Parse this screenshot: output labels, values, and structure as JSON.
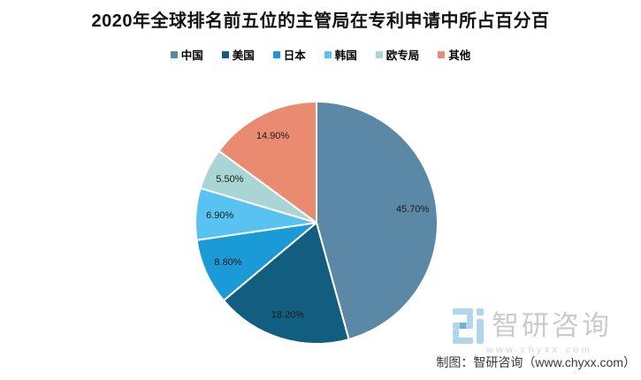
{
  "title": "2020年全球排名前五位的主管局在专利申请中所占百分百",
  "chart_data": {
    "type": "pie",
    "title": "2020年全球排名前五位的主管局在专利申请中所占百分百",
    "legend_position": "top",
    "start_angle_deg": 0,
    "direction": "clockwise",
    "slices": [
      {
        "label": "中国",
        "value": 45.7,
        "display": "45.70%",
        "color": "#5b89a5"
      },
      {
        "label": "美国",
        "value": 18.2,
        "display": "18.20%",
        "color": "#115e80"
      },
      {
        "label": "日本",
        "value": 8.8,
        "display": "8.80%",
        "color": "#1a9ad6"
      },
      {
        "label": "韩国",
        "value": 6.9,
        "display": "6.90%",
        "color": "#58c3f0"
      },
      {
        "label": "欧专局",
        "value": 5.5,
        "display": "5.50%",
        "color": "#a9d6d4"
      },
      {
        "label": "其他",
        "value": 14.9,
        "display": "14.90%",
        "color": "#e98b71"
      }
    ],
    "slice_border_color": "#ffffff",
    "label_text_color": "#1a1a1a"
  },
  "watermark": {
    "brand": "智研咨询",
    "url": "www.chyxx.com",
    "logo_color": "#aed6ee",
    "logo_accent_color": "#6fb0de"
  },
  "credit": "制图：智研咨询（www.chyxx.com）"
}
